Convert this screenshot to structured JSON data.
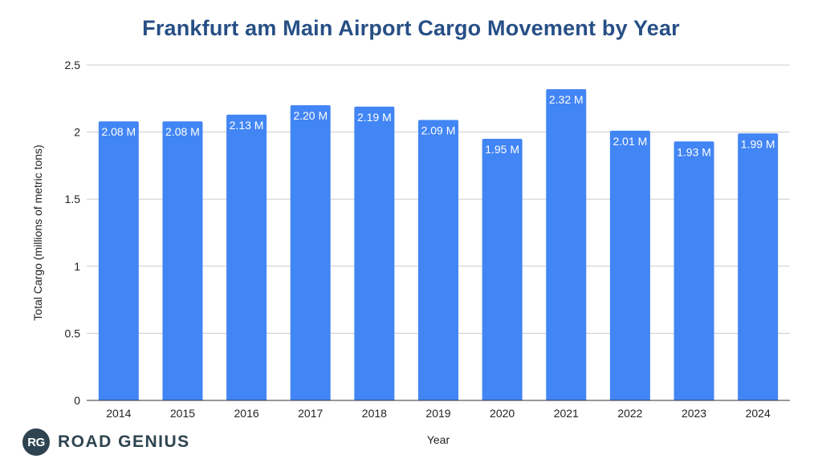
{
  "chart_data": {
    "type": "bar",
    "title": "Frankfurt am Main Airport Cargo Movement by Year",
    "xlabel": "Year",
    "ylabel": "Total Cargo (millions of metric tons)",
    "categories": [
      "2014",
      "2015",
      "2016",
      "2017",
      "2018",
      "2019",
      "2020",
      "2021",
      "2022",
      "2023",
      "2024"
    ],
    "values": [
      2.08,
      2.08,
      2.13,
      2.2,
      2.19,
      2.09,
      1.95,
      2.32,
      2.01,
      1.93,
      1.99
    ],
    "data_labels": [
      "2.08 M",
      "2.08 M",
      "2.13 M",
      "2.20 M",
      "2.19 M",
      "2.09 M",
      "1.95 M",
      "2.32 M",
      "2.01 M",
      "1.93 M",
      "1.99 M"
    ],
    "ylim": [
      0,
      2.5
    ],
    "yticks": [
      "0",
      "0.5",
      "1",
      "1.5",
      "2",
      "2.5"
    ],
    "ytick_values": [
      0,
      0.5,
      1,
      1.5,
      2,
      2.5
    ],
    "grid": true,
    "legend": "none",
    "bar_color": "#4285f4",
    "title_color": "#274f86"
  },
  "logo": {
    "badge": "RG",
    "text": "ROAD GENIUS"
  }
}
